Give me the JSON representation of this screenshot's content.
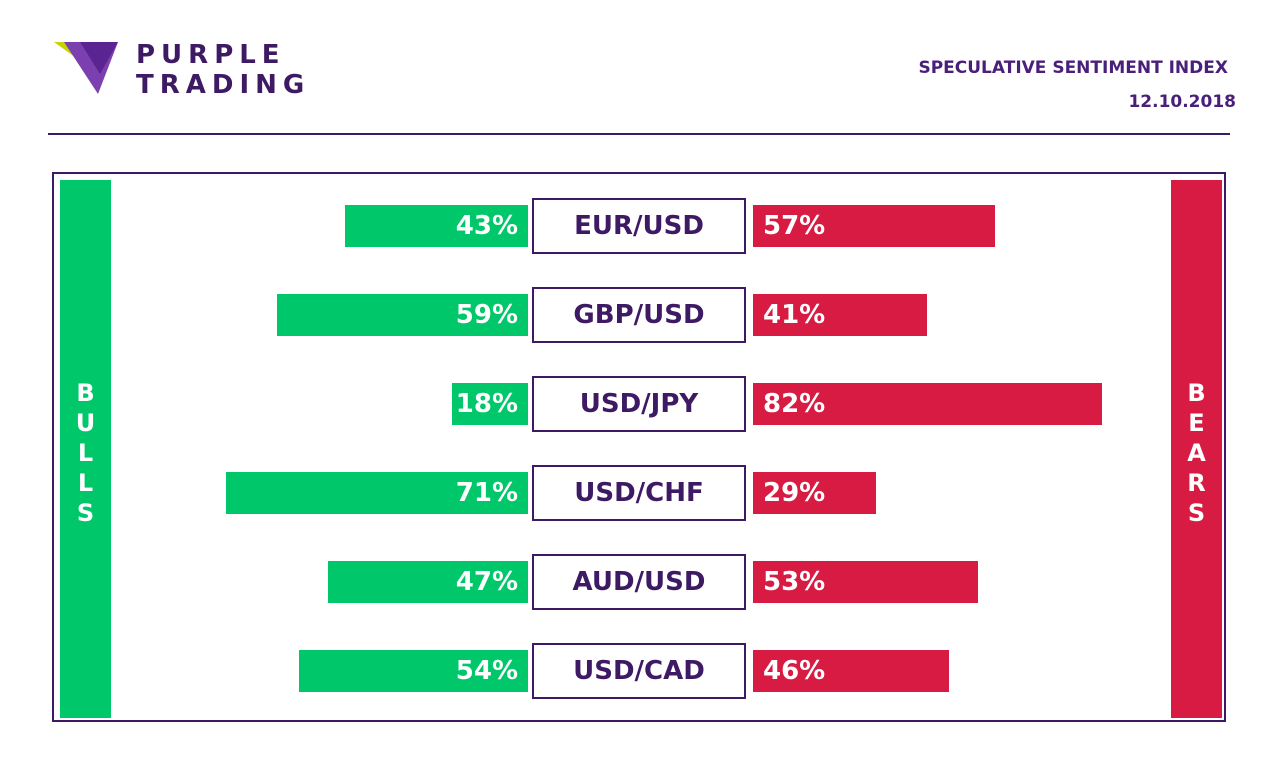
{
  "brand": {
    "line1": "PURPLE",
    "line2": "TRADING"
  },
  "header": {
    "title": "SPECULATIVE SENTIMENT INDEX",
    "date": "12.10.2018"
  },
  "colors": {
    "bulls": "#00c86a",
    "bears": "#d81b42",
    "accent": "#3d1a63"
  },
  "chart_data": {
    "type": "bar",
    "title": "SPECULATIVE SENTIMENT INDEX",
    "categories": [
      "EUR/USD",
      "GBP/USD",
      "USD/JPY",
      "USD/CHF",
      "AUD/USD",
      "USD/CAD"
    ],
    "series": [
      {
        "name": "BULLS",
        "values": [
          43,
          59,
          18,
          71,
          47,
          54
        ]
      },
      {
        "name": "BEARS",
        "values": [
          57,
          41,
          82,
          29,
          53,
          46
        ]
      }
    ],
    "unit": "%",
    "ylim": [
      0,
      100
    ],
    "grid": false
  }
}
